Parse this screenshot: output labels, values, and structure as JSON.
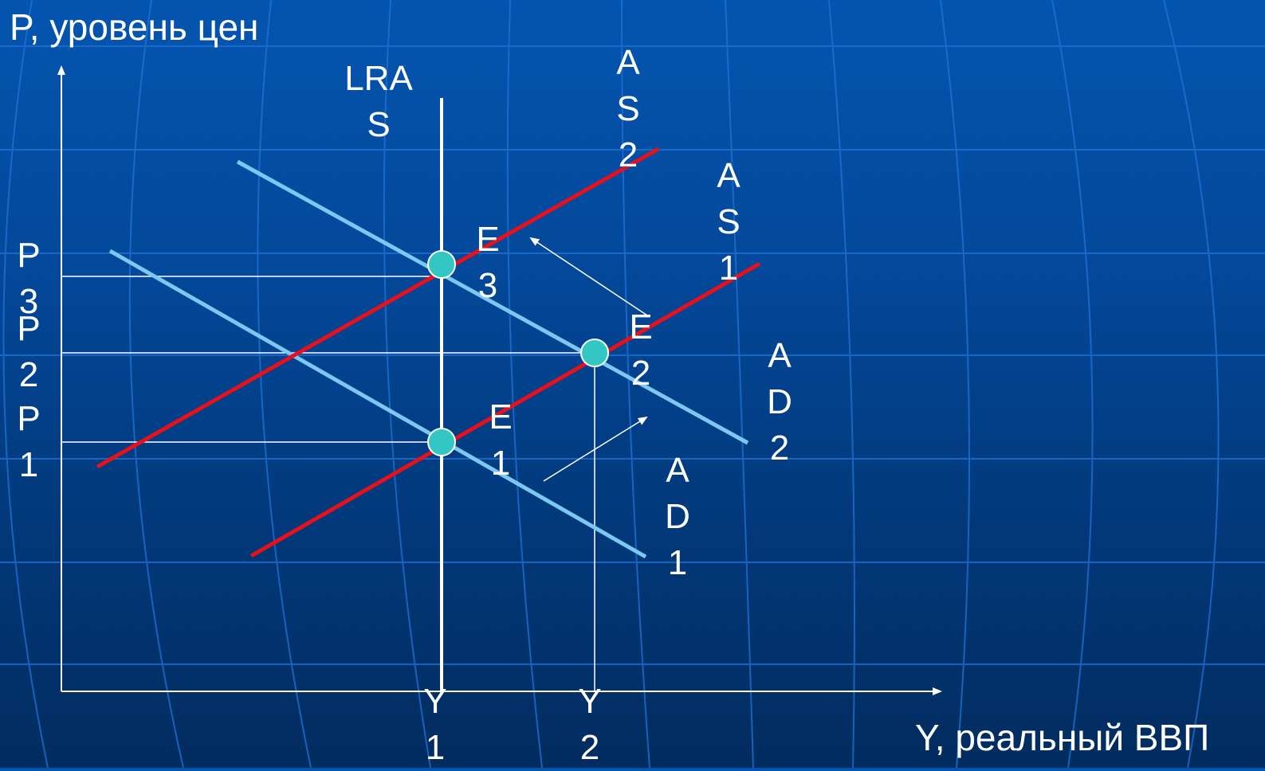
{
  "axes": {
    "y_title": "P, уровень цен",
    "x_title": "Y, реальный ВВП"
  },
  "price_levels": [
    {
      "id": "p3",
      "text": "P\n3"
    },
    {
      "id": "p2",
      "text": "P\n2"
    },
    {
      "id": "p1",
      "text": "P\n1"
    }
  ],
  "outputs": [
    {
      "id": "y1",
      "text": "Y\n1"
    },
    {
      "id": "y2",
      "text": "Y\n2"
    }
  ],
  "curves": {
    "lras": "LRA\nS",
    "as2": "A\nS\n2",
    "as1": "A\nS\n1",
    "ad2": "A\nD\n2",
    "ad1": "A\nD\n1"
  },
  "equilibria": {
    "e3": "E\n3",
    "e2": "E\n2",
    "e1": "E\n1"
  },
  "colors": {
    "background": "#0350a6",
    "grid": "#1f74d8",
    "axis": "#ffffff",
    "aggregate_supply": "#e8101a",
    "aggregate_demand": "#7cc8f2",
    "lras": "#ffffff",
    "equilibrium_point": "#33c7c4"
  }
}
